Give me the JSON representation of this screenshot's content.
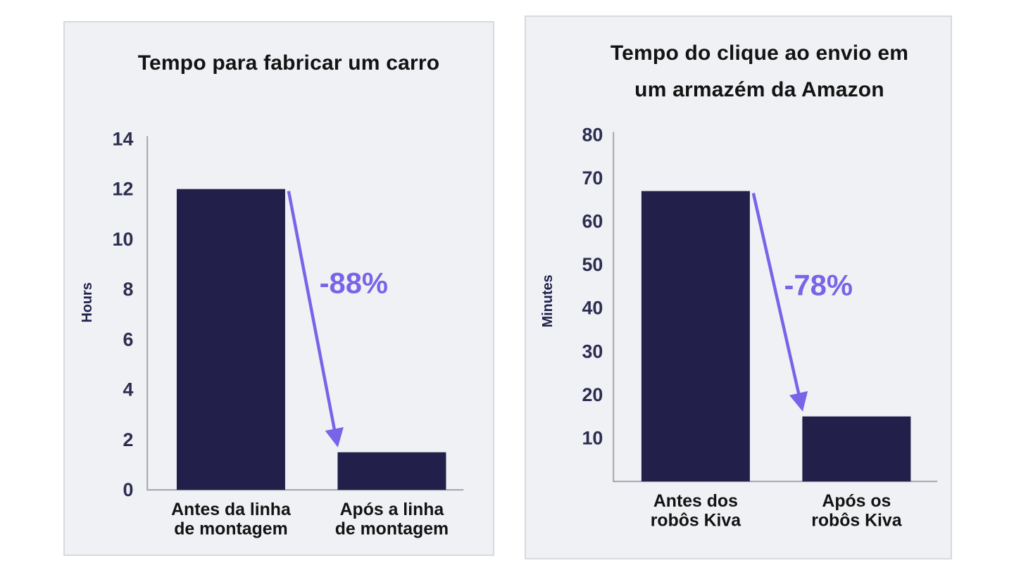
{
  "colors": {
    "panel_bg": "#f0f1f4",
    "panel_border": "#d8d9de",
    "bar": "#231f4b",
    "arrow": "#7963e8",
    "axis": "#a3a4ad",
    "tick_text": "#2c2d51",
    "title_text": "#131313",
    "category_text": "#131313",
    "ylabel_text": "#20224c"
  },
  "chart_data": [
    {
      "type": "bar",
      "title": "Tempo para fabricar um carro",
      "title_lines": [
        "Tempo para fabricar um carro"
      ],
      "ylabel": "Hours",
      "ylim": [
        0,
        14
      ],
      "yticks": [
        0,
        2,
        4,
        6,
        8,
        10,
        12,
        14
      ],
      "categories": [
        "Antes da linha de montagem",
        "Após a linha de montagem"
      ],
      "category_lines": [
        [
          "Antes da linha",
          "de montagem"
        ],
        [
          "Após a linha",
          "de montagem"
        ]
      ],
      "values": [
        12,
        1.5
      ],
      "annotation": "-88%",
      "grid": false,
      "legend": "none"
    },
    {
      "type": "bar",
      "title": "Tempo do clique ao envio em um armazém da Amazon",
      "title_lines": [
        "Tempo do clique ao envio em",
        "um armazém da Amazon"
      ],
      "ylabel": "Minutes",
      "ylim": [
        0,
        80
      ],
      "yticks": [
        10,
        20,
        30,
        40,
        50,
        60,
        70,
        80
      ],
      "categories": [
        "Antes dos robôs Kiva",
        "Após os robôs Kiva"
      ],
      "category_lines": [
        [
          "Antes dos",
          "robôs Kiva"
        ],
        [
          "Após os",
          "robôs Kiva"
        ]
      ],
      "values": [
        67,
        15
      ],
      "annotation": "-78%",
      "grid": false,
      "legend": "none"
    }
  ]
}
